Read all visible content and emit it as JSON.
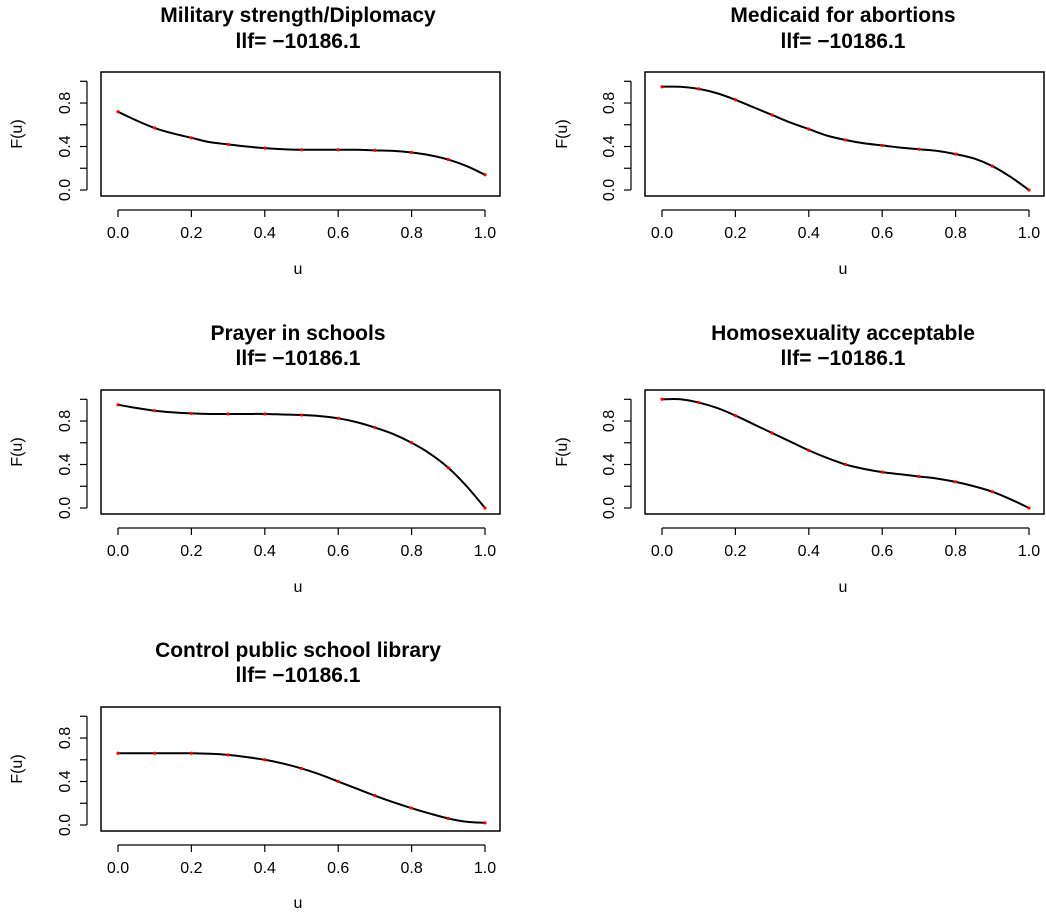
{
  "chart_data": [
    {
      "type": "line",
      "title": "Military strength/Diplomacy",
      "subtitle": "llf= −10186.1",
      "xlabel": "u",
      "ylabel": "F(u)",
      "xlim": [
        0,
        1
      ],
      "ylim": [
        0,
        1
      ],
      "xticks": [
        "0.0",
        "0.2",
        "0.4",
        "0.6",
        "0.8",
        "1.0"
      ],
      "yticks": [
        "0.0",
        "0.4",
        "0.8"
      ],
      "grid": false,
      "colors": {
        "line": "#000000",
        "points": "#ff0000"
      },
      "x": [
        0,
        0.05,
        0.1,
        0.15,
        0.2,
        0.25,
        0.3,
        0.35,
        0.4,
        0.45,
        0.5,
        0.55,
        0.6,
        0.65,
        0.7,
        0.75,
        0.8,
        0.85,
        0.9,
        0.95,
        1.0
      ],
      "series": [
        {
          "values": [
            0.72,
            0.64,
            0.57,
            0.52,
            0.48,
            0.44,
            0.42,
            0.4,
            0.385,
            0.375,
            0.37,
            0.37,
            0.37,
            0.37,
            0.365,
            0.36,
            0.345,
            0.32,
            0.28,
            0.22,
            0.14
          ]
        }
      ]
    },
    {
      "type": "line",
      "title": "Medicaid for abortions",
      "subtitle": "llf= −10186.1",
      "xlabel": "u",
      "ylabel": "F(u)",
      "xlim": [
        0,
        1
      ],
      "ylim": [
        0,
        1
      ],
      "xticks": [
        "0.0",
        "0.2",
        "0.4",
        "0.6",
        "0.8",
        "1.0"
      ],
      "yticks": [
        "0.0",
        "0.4",
        "0.8"
      ],
      "grid": false,
      "colors": {
        "line": "#000000",
        "points": "#ff0000"
      },
      "x": [
        0,
        0.05,
        0.1,
        0.15,
        0.2,
        0.25,
        0.3,
        0.35,
        0.4,
        0.45,
        0.5,
        0.55,
        0.6,
        0.65,
        0.7,
        0.75,
        0.8,
        0.85,
        0.9,
        0.95,
        1.0
      ],
      "series": [
        {
          "values": [
            0.95,
            0.95,
            0.93,
            0.89,
            0.83,
            0.76,
            0.69,
            0.62,
            0.56,
            0.5,
            0.46,
            0.43,
            0.41,
            0.39,
            0.375,
            0.36,
            0.33,
            0.29,
            0.22,
            0.12,
            0.0
          ]
        }
      ]
    },
    {
      "type": "line",
      "title": "Prayer in schools",
      "subtitle": "llf= −10186.1",
      "xlabel": "u",
      "ylabel": "F(u)",
      "xlim": [
        0,
        1
      ],
      "ylim": [
        0,
        1
      ],
      "xticks": [
        "0.0",
        "0.2",
        "0.4",
        "0.6",
        "0.8",
        "1.0"
      ],
      "yticks": [
        "0.0",
        "0.4",
        "0.8"
      ],
      "grid": false,
      "colors": {
        "line": "#000000",
        "points": "#ff0000"
      },
      "x": [
        0,
        0.05,
        0.1,
        0.15,
        0.2,
        0.25,
        0.3,
        0.35,
        0.4,
        0.45,
        0.5,
        0.55,
        0.6,
        0.65,
        0.7,
        0.75,
        0.8,
        0.85,
        0.9,
        0.95,
        1.0
      ],
      "series": [
        {
          "values": [
            0.95,
            0.92,
            0.895,
            0.88,
            0.87,
            0.865,
            0.865,
            0.865,
            0.865,
            0.86,
            0.855,
            0.845,
            0.825,
            0.79,
            0.74,
            0.68,
            0.6,
            0.5,
            0.37,
            0.2,
            0.0
          ]
        }
      ]
    },
    {
      "type": "line",
      "title": "Homosexuality acceptable",
      "subtitle": "llf= −10186.1",
      "xlabel": "u",
      "ylabel": "F(u)",
      "xlim": [
        0,
        1
      ],
      "ylim": [
        0,
        1
      ],
      "xticks": [
        "0.0",
        "0.2",
        "0.4",
        "0.6",
        "0.8",
        "1.0"
      ],
      "yticks": [
        "0.0",
        "0.4",
        "0.8"
      ],
      "grid": false,
      "colors": {
        "line": "#000000",
        "points": "#ff0000"
      },
      "x": [
        0,
        0.05,
        0.1,
        0.15,
        0.2,
        0.25,
        0.3,
        0.35,
        0.4,
        0.45,
        0.5,
        0.55,
        0.6,
        0.65,
        0.7,
        0.75,
        0.8,
        0.85,
        0.9,
        0.95,
        1.0
      ],
      "series": [
        {
          "values": [
            1.0,
            1.0,
            0.97,
            0.92,
            0.85,
            0.77,
            0.69,
            0.61,
            0.53,
            0.46,
            0.4,
            0.36,
            0.33,
            0.31,
            0.29,
            0.27,
            0.24,
            0.2,
            0.15,
            0.08,
            0.0
          ]
        }
      ]
    },
    {
      "type": "line",
      "title": "Control public school library",
      "subtitle": "llf= −10186.1",
      "xlabel": "u",
      "ylabel": "F(u)",
      "xlim": [
        0,
        1
      ],
      "ylim": [
        0,
        1
      ],
      "xticks": [
        "0.0",
        "0.2",
        "0.4",
        "0.6",
        "0.8",
        "1.0"
      ],
      "yticks": [
        "0.0",
        "0.4",
        "0.8"
      ],
      "grid": false,
      "colors": {
        "line": "#000000",
        "points": "#ff0000"
      },
      "x": [
        0,
        0.05,
        0.1,
        0.15,
        0.2,
        0.25,
        0.3,
        0.35,
        0.4,
        0.45,
        0.5,
        0.55,
        0.6,
        0.65,
        0.7,
        0.75,
        0.8,
        0.85,
        0.9,
        0.95,
        1.0
      ],
      "series": [
        {
          "values": [
            0.66,
            0.66,
            0.66,
            0.66,
            0.66,
            0.655,
            0.645,
            0.625,
            0.6,
            0.565,
            0.52,
            0.465,
            0.4,
            0.335,
            0.27,
            0.21,
            0.155,
            0.105,
            0.06,
            0.03,
            0.02
          ]
        }
      ]
    }
  ]
}
